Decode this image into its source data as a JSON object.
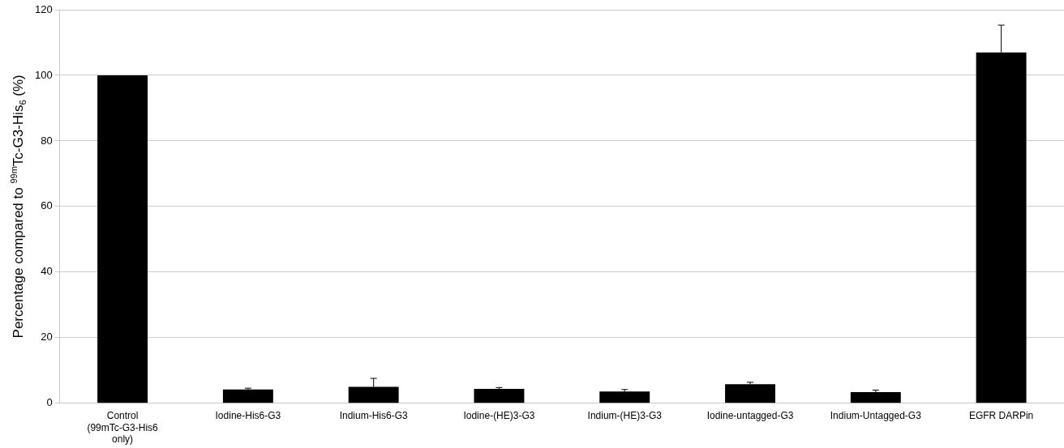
{
  "chart_data": {
    "type": "bar",
    "ylabel": "Percentage compared to $^{99m}$Tc-G3-His$_{6}$ (%)",
    "categories": [
      "Control (99mTc-G3-His6 only)",
      "Iodine-His6-G3",
      "Indium-His6-G3",
      "Iodine-(HE)3-G3",
      "Indium-(HE)3-G3",
      "Iodine-untagged-G3",
      "Indium-Untagged-G3",
      "EGFR DARPin"
    ],
    "values": [
      100,
      4.2,
      5.0,
      4.4,
      3.6,
      5.8,
      3.4,
      107
    ],
    "errors": [
      null,
      [
        4.2,
        4.6
      ],
      [
        5.0,
        7.6
      ],
      [
        4.4,
        4.8
      ],
      [
        3.6,
        4.2
      ],
      [
        5.8,
        6.4
      ],
      [
        3.4,
        4.0
      ],
      [
        107,
        115.3
      ]
    ],
    "color": "#000000",
    "ylim": [
      0,
      120
    ],
    "yticks": [
      0,
      20,
      40,
      60,
      80,
      100,
      120
    ],
    "grid": "y",
    "legend": false
  }
}
